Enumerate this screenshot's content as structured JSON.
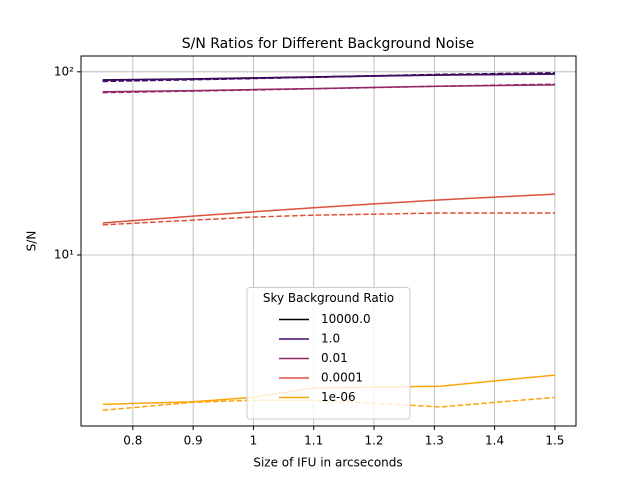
{
  "chart_data": {
    "type": "line",
    "title": "S/N Ratios for Different Background Noise",
    "x_label": "Size of IFU in arcseconds",
    "y_label": "S/N",
    "legend_title": "Sky Background Ratio",
    "legend_position": "lower center",
    "x": [
      0.75,
      0.9,
      1.0,
      1.1,
      1.2,
      1.31,
      1.5
    ],
    "xlim": [
      0.714,
      1.535
    ],
    "xticks": [
      0.8,
      0.9,
      1.0,
      1.1,
      1.2,
      1.3,
      1.4,
      1.5
    ],
    "ylim": [
      1.165,
      122
    ],
    "yticks": [
      {
        "value": 10,
        "label": "10¹"
      },
      {
        "value": 100,
        "label": "10²"
      }
    ],
    "y_scale": "log",
    "grid": true,
    "series": [
      {
        "name": "10000.0",
        "color": "#000004",
        "values": [
          90.4,
          91.5,
          92.6,
          93.8,
          95.0,
          96.3,
          97.5
        ],
        "dashed_values": [
          89.0,
          90.8,
          92.2,
          93.6,
          95.2,
          96.8,
          98.7
        ]
      },
      {
        "name": "1.0",
        "color": "#420a68",
        "values": [
          90.0,
          91.2,
          92.3,
          93.5,
          94.7,
          96.0,
          97.2
        ],
        "dashed_values": [
          88.6,
          90.5,
          91.9,
          93.3,
          94.9,
          96.5,
          98.3
        ]
      },
      {
        "name": "0.01",
        "color": "#932667",
        "values": [
          77.8,
          79.0,
          80.0,
          81.0,
          82.2,
          83.4,
          84.9
        ],
        "dashed_values": [
          77.0,
          78.5,
          79.6,
          80.8,
          82.0,
          83.5,
          85.6
        ]
      },
      {
        "name": "0.0001",
        "color": "#dd513a",
        "values": [
          14.96,
          16.3,
          17.2,
          18.1,
          19.0,
          20.0,
          21.5
        ],
        "dashed_values": [
          14.6,
          15.5,
          16.1,
          16.5,
          16.7,
          16.96,
          16.96
        ]
      },
      {
        "name": "1e-06",
        "color": "#fca50a",
        "values": [
          1.53,
          1.58,
          1.67,
          1.88,
          1.9,
          1.92,
          2.21
        ],
        "dashed_values": [
          1.42,
          1.57,
          1.61,
          1.61,
          1.55,
          1.48,
          1.67
        ]
      }
    ]
  }
}
